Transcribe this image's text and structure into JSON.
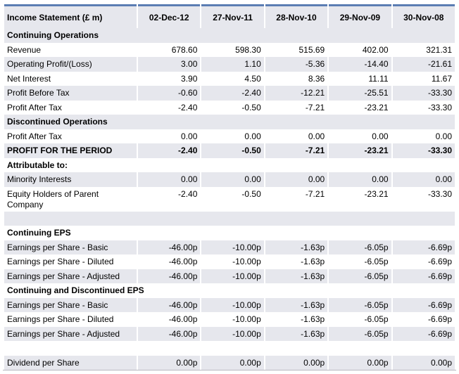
{
  "table": {
    "header": [
      "Income Statement  (£ m)",
      "02-Dec-12",
      "27-Nov-11",
      "28-Nov-10",
      "29-Nov-09",
      "30-Nov-08"
    ],
    "sections": [
      {
        "title": "Continuing Operations",
        "rows": [
          [
            "Revenue",
            "678.60",
            "598.30",
            "515.69",
            "402.00",
            "321.31"
          ],
          [
            "Operating Profit/(Loss)",
            "3.00",
            "1.10",
            "-5.36",
            "-14.40",
            "-21.61"
          ],
          [
            "Net Interest",
            "3.90",
            "4.50",
            "8.36",
            "11.11",
            "11.67"
          ],
          [
            "Profit Before Tax",
            "-0.60",
            "-2.40",
            "-12.21",
            "-25.51",
            "-33.30"
          ],
          [
            "Profit After Tax",
            "-2.40",
            "-0.50",
            "-7.21",
            "-23.21",
            "-33.30"
          ]
        ]
      },
      {
        "title": "Discontinued Operations",
        "rows": [
          [
            "Profit After Tax",
            "0.00",
            "0.00",
            "0.00",
            "0.00",
            "0.00"
          ],
          [
            "PROFIT FOR THE PERIOD",
            "-2.40",
            "-0.50",
            "-7.21",
            "-23.21",
            "-33.30"
          ]
        ]
      },
      {
        "title": "Attributable to:",
        "rows": [
          [
            "Minority Interests",
            "0.00",
            "0.00",
            "0.00",
            "0.00",
            "0.00"
          ],
          [
            "Equity Holders of Parent Company",
            "-2.40",
            "-0.50",
            "-7.21",
            "-23.21",
            "-33.30"
          ]
        ]
      },
      {
        "title": "Continuing EPS",
        "rows": [
          [
            "Earnings per Share - Basic",
            "-46.00p",
            "-10.00p",
            "-1.63p",
            "-6.05p",
            "-6.69p"
          ],
          [
            "Earnings per Share - Diluted",
            "-46.00p",
            "-10.00p",
            "-1.63p",
            "-6.05p",
            "-6.69p"
          ],
          [
            "Earnings per Share - Adjusted",
            "-46.00p",
            "-10.00p",
            "-1.63p",
            "-6.05p",
            "-6.69p"
          ]
        ]
      },
      {
        "title": "Continuing and Discontinued EPS",
        "rows": [
          [
            "Earnings per Share - Basic",
            "-46.00p",
            "-10.00p",
            "-1.63p",
            "-6.05p",
            "-6.69p"
          ],
          [
            "Earnings per Share - Diluted",
            "-46.00p",
            "-10.00p",
            "-1.63p",
            "-6.05p",
            "-6.69p"
          ],
          [
            "Earnings per Share - Adjusted",
            "-46.00p",
            "-10.00p",
            "-1.63p",
            "-6.05p",
            "-6.69p"
          ]
        ]
      }
    ],
    "dividend": [
      "Dividend per Share",
      "0.00p",
      "0.00p",
      "0.00p",
      "0.00p",
      "0.00p"
    ]
  }
}
